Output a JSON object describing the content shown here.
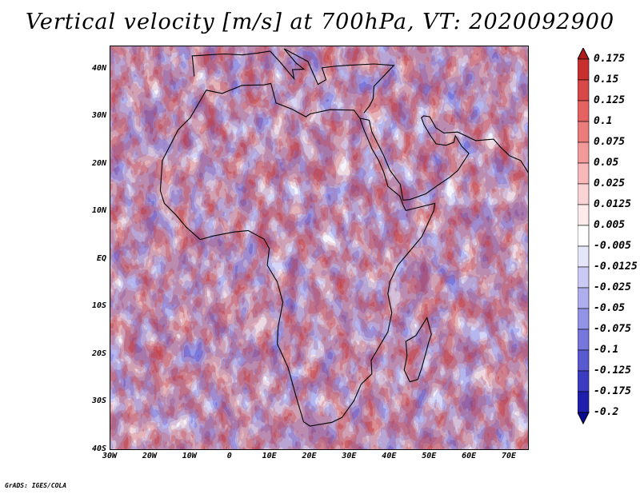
{
  "title": "Vertical velocity [m/s] at 700hPa, VT: 2020092900",
  "credit": "GrADS: IGES/COLA",
  "map": {
    "region": "Africa",
    "lon_range": [
      -30,
      75
    ],
    "lat_range": [
      -40,
      45
    ],
    "lat_ticks": [
      {
        "value": 40,
        "label": "40N"
      },
      {
        "value": 30,
        "label": "30N"
      },
      {
        "value": 20,
        "label": "20N"
      },
      {
        "value": 10,
        "label": "10N"
      },
      {
        "value": 0,
        "label": "EQ"
      },
      {
        "value": -10,
        "label": "10S"
      },
      {
        "value": -20,
        "label": "20S"
      },
      {
        "value": -30,
        "label": "30S"
      },
      {
        "value": -40,
        "label": "40S"
      }
    ],
    "lon_ticks": [
      {
        "value": -30,
        "label": "30W"
      },
      {
        "value": -20,
        "label": "20W"
      },
      {
        "value": -10,
        "label": "10W"
      },
      {
        "value": 0,
        "label": "0"
      },
      {
        "value": 10,
        "label": "10E"
      },
      {
        "value": 20,
        "label": "20E"
      },
      {
        "value": 30,
        "label": "30E"
      },
      {
        "value": 40,
        "label": "40E"
      },
      {
        "value": 50,
        "label": "50E"
      },
      {
        "value": 60,
        "label": "60E"
      },
      {
        "value": 70,
        "label": "70E"
      }
    ]
  },
  "colorbar": {
    "labels": [
      "0.175",
      "0.15",
      "0.125",
      "0.1",
      "0.075",
      "0.05",
      "0.025",
      "0.0125",
      "0.005",
      "-0.005",
      "-0.0125",
      "-0.025",
      "-0.05",
      "-0.075",
      "-0.1",
      "-0.125",
      "-0.175",
      "-0.2"
    ],
    "colors": [
      "#b21a1a",
      "#c83030",
      "#d84848",
      "#e46262",
      "#ec7c7c",
      "#f29a9a",
      "#f6b8b8",
      "#fad4d4",
      "#fdeaea",
      "#ffffff",
      "#e6e6fb",
      "#cacaf5",
      "#aeaeee",
      "#9292e6",
      "#7676dc",
      "#5a5ad0",
      "#3c3cc2",
      "#1f1fad",
      "#0a0a94"
    ]
  }
}
